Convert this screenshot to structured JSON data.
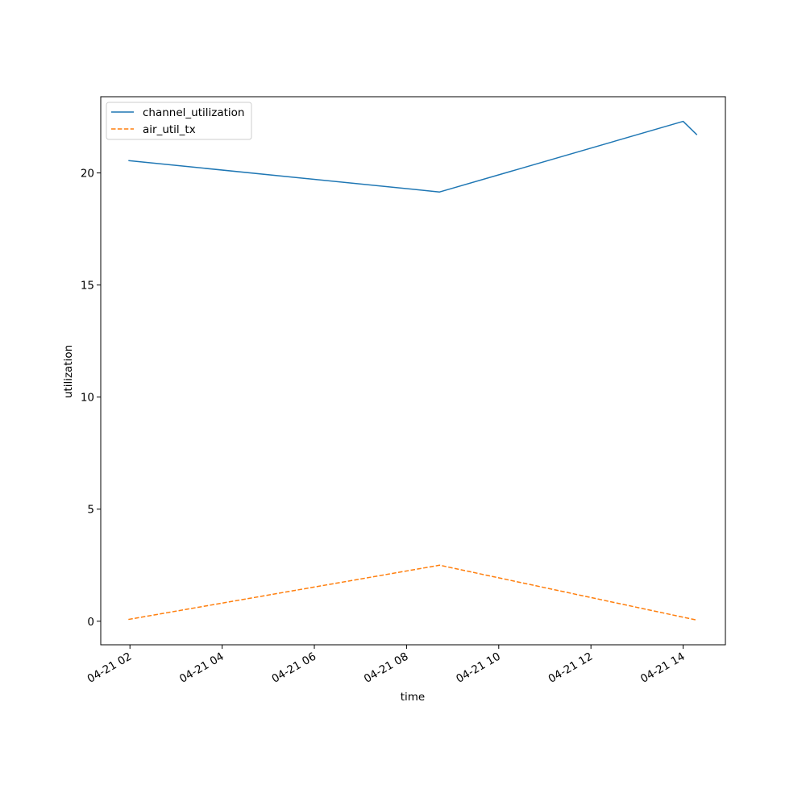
{
  "chart_data": {
    "type": "line",
    "title": "",
    "xlabel": "time",
    "ylabel": "utilization",
    "x_tick_labels": [
      "04-21 02",
      "04-21 04",
      "04-21 06",
      "04-21 08",
      "04-21 10",
      "04-21 12",
      "04-21 14"
    ],
    "x_ticks": [
      "2024-04-21T02:00",
      "2024-04-21T04:00",
      "2024-04-21T06:00",
      "2024-04-21T08:00",
      "2024-04-21T10:00",
      "2024-04-21T12:00",
      "2024-04-21T14:00"
    ],
    "xlim": [
      "2024-04-21T01:22",
      "2024-04-21T14:55"
    ],
    "y_ticks": [
      0,
      5,
      10,
      15,
      20
    ],
    "ylim": [
      -1.05,
      23.4
    ],
    "grid": false,
    "legend_position": "upper left",
    "series": [
      {
        "name": "channel_utilization",
        "color": "#1f77b4",
        "style": "solid",
        "x": [
          "2024-04-21T01:58",
          "2024-04-21T08:43",
          "2024-04-21T14:00",
          "2024-04-21T14:18"
        ],
        "y": [
          20.55,
          19.15,
          22.3,
          21.7
        ]
      },
      {
        "name": "air_util_tx",
        "color": "#ff7f0e",
        "style": "dashed",
        "x": [
          "2024-04-21T01:58",
          "2024-04-21T08:43",
          "2024-04-21T14:00",
          "2024-04-21T14:18"
        ],
        "y": [
          0.08,
          2.5,
          0.18,
          0.05
        ]
      }
    ]
  }
}
